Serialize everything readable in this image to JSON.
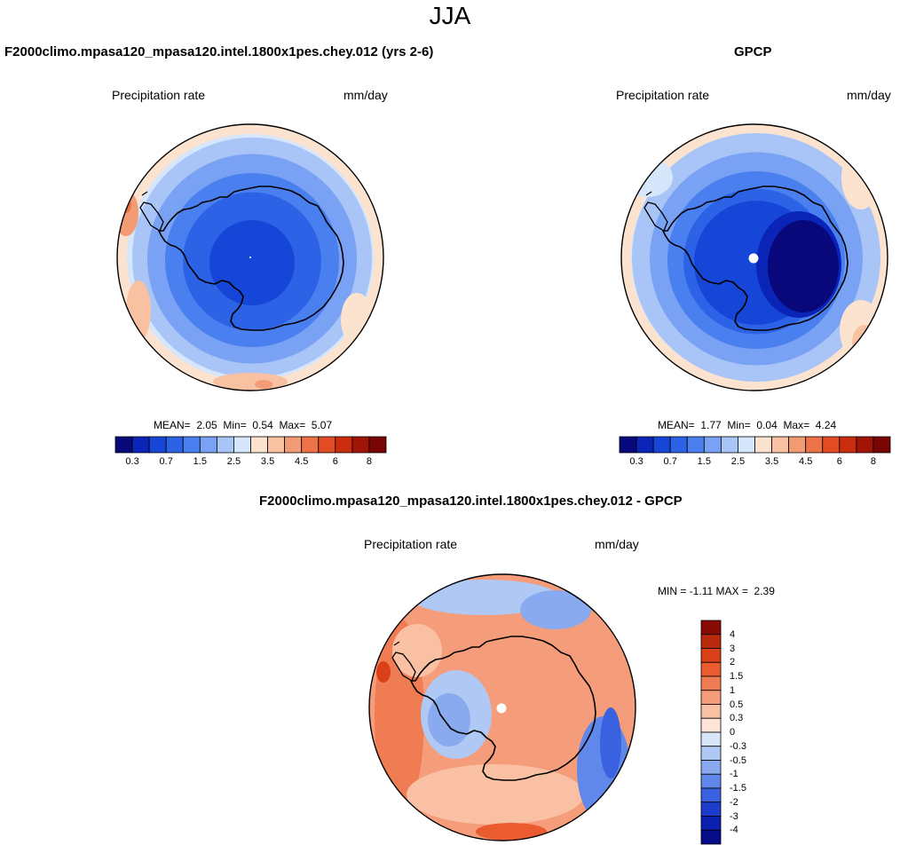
{
  "page": {
    "title": "JJA"
  },
  "chart_data": [
    {
      "type": "heatmap",
      "projection": "south-polar-stereographic",
      "title": "F2000climo.mpasa120_mpasa120.intel.1800x1pes.chey.012 (yrs 2-6)",
      "left_label": "Precipitation rate",
      "right_label": "mm/day",
      "stats": {
        "mean_label": "MEAN=",
        "mean": "2.05",
        "min_label": "Min=",
        "min": "0.54",
        "max_label": "Max=",
        "max": "5.07"
      },
      "colorbar": {
        "orientation": "horizontal",
        "levels": [
          "0.3",
          "0.5",
          "0.7",
          "1",
          "1.5",
          "2",
          "2.5",
          "3",
          "3.5",
          "4",
          "4.5",
          "5",
          "6",
          "7",
          "8"
        ],
        "tick_labels": [
          "0.3",
          "0.7",
          "1.5",
          "2.5",
          "3.5",
          "4.5",
          "6",
          "8"
        ],
        "colors": [
          "#08087a",
          "#0a24b8",
          "#1646d8",
          "#2c62e6",
          "#4a7ff0",
          "#7aa2f4",
          "#a9c4f6",
          "#d6e6fb",
          "#fbe3d0",
          "#f8c2a2",
          "#f29b74",
          "#ec7248",
          "#e34b24",
          "#c92d0e",
          "#a01506",
          "#780404"
        ]
      },
      "pattern": "model"
    },
    {
      "type": "heatmap",
      "projection": "south-polar-stereographic",
      "title": "GPCP",
      "left_label": "Precipitation rate",
      "right_label": "mm/day",
      "stats": {
        "mean_label": "MEAN=",
        "mean": "1.77",
        "min_label": "Min=",
        "min": "0.04",
        "max_label": "Max=",
        "max": "4.24"
      },
      "colorbar": {
        "orientation": "horizontal",
        "levels": [
          "0.3",
          "0.5",
          "0.7",
          "1",
          "1.5",
          "2",
          "2.5",
          "3",
          "3.5",
          "4",
          "4.5",
          "5",
          "6",
          "7",
          "8"
        ],
        "tick_labels": [
          "0.3",
          "0.7",
          "1.5",
          "2.5",
          "3.5",
          "4.5",
          "6",
          "8"
        ],
        "colors": [
          "#08087a",
          "#0a24b8",
          "#1646d8",
          "#2c62e6",
          "#4a7ff0",
          "#7aa2f4",
          "#a9c4f6",
          "#d6e6fb",
          "#fbe3d0",
          "#f8c2a2",
          "#f29b74",
          "#ec7248",
          "#e34b24",
          "#c92d0e",
          "#a01506",
          "#780404"
        ]
      },
      "pattern": "obs"
    },
    {
      "type": "heatmap",
      "projection": "south-polar-stereographic",
      "title": "F2000climo.mpasa120_mpasa120.intel.1800x1pes.chey.012 - GPCP",
      "left_label": "Precipitation rate",
      "right_label": "mm/day",
      "stats": {
        "min_label": "MIN =",
        "min": "-1.11",
        "max_label": "MAX =",
        "max": "2.39"
      },
      "colorbar": {
        "orientation": "vertical",
        "levels": [
          "4",
          "3",
          "2",
          "1.5",
          "1",
          "0.5",
          "0.3",
          "0",
          "-0.3",
          "-0.5",
          "-1",
          "-1.5",
          "-2",
          "-3",
          "-4"
        ],
        "tick_labels": [
          "4",
          "3",
          "2",
          "1.5",
          "1",
          "0.5",
          "0.3",
          "0",
          "-0.3",
          "-0.5",
          "-1",
          "-1.5",
          "-2",
          "-3",
          "-4"
        ],
        "colors": [
          "#8a0a06",
          "#b82a0c",
          "#dc4018",
          "#ea5c30",
          "#f07c54",
          "#f59c7a",
          "#f9c0a4",
          "#fde6d8",
          "#d8e6fa",
          "#b0c8f4",
          "#8aaaf0",
          "#6088ea",
          "#3a62e0",
          "#1c3ccc",
          "#0c20b0",
          "#060c88"
        ]
      },
      "pattern": "diff"
    }
  ]
}
